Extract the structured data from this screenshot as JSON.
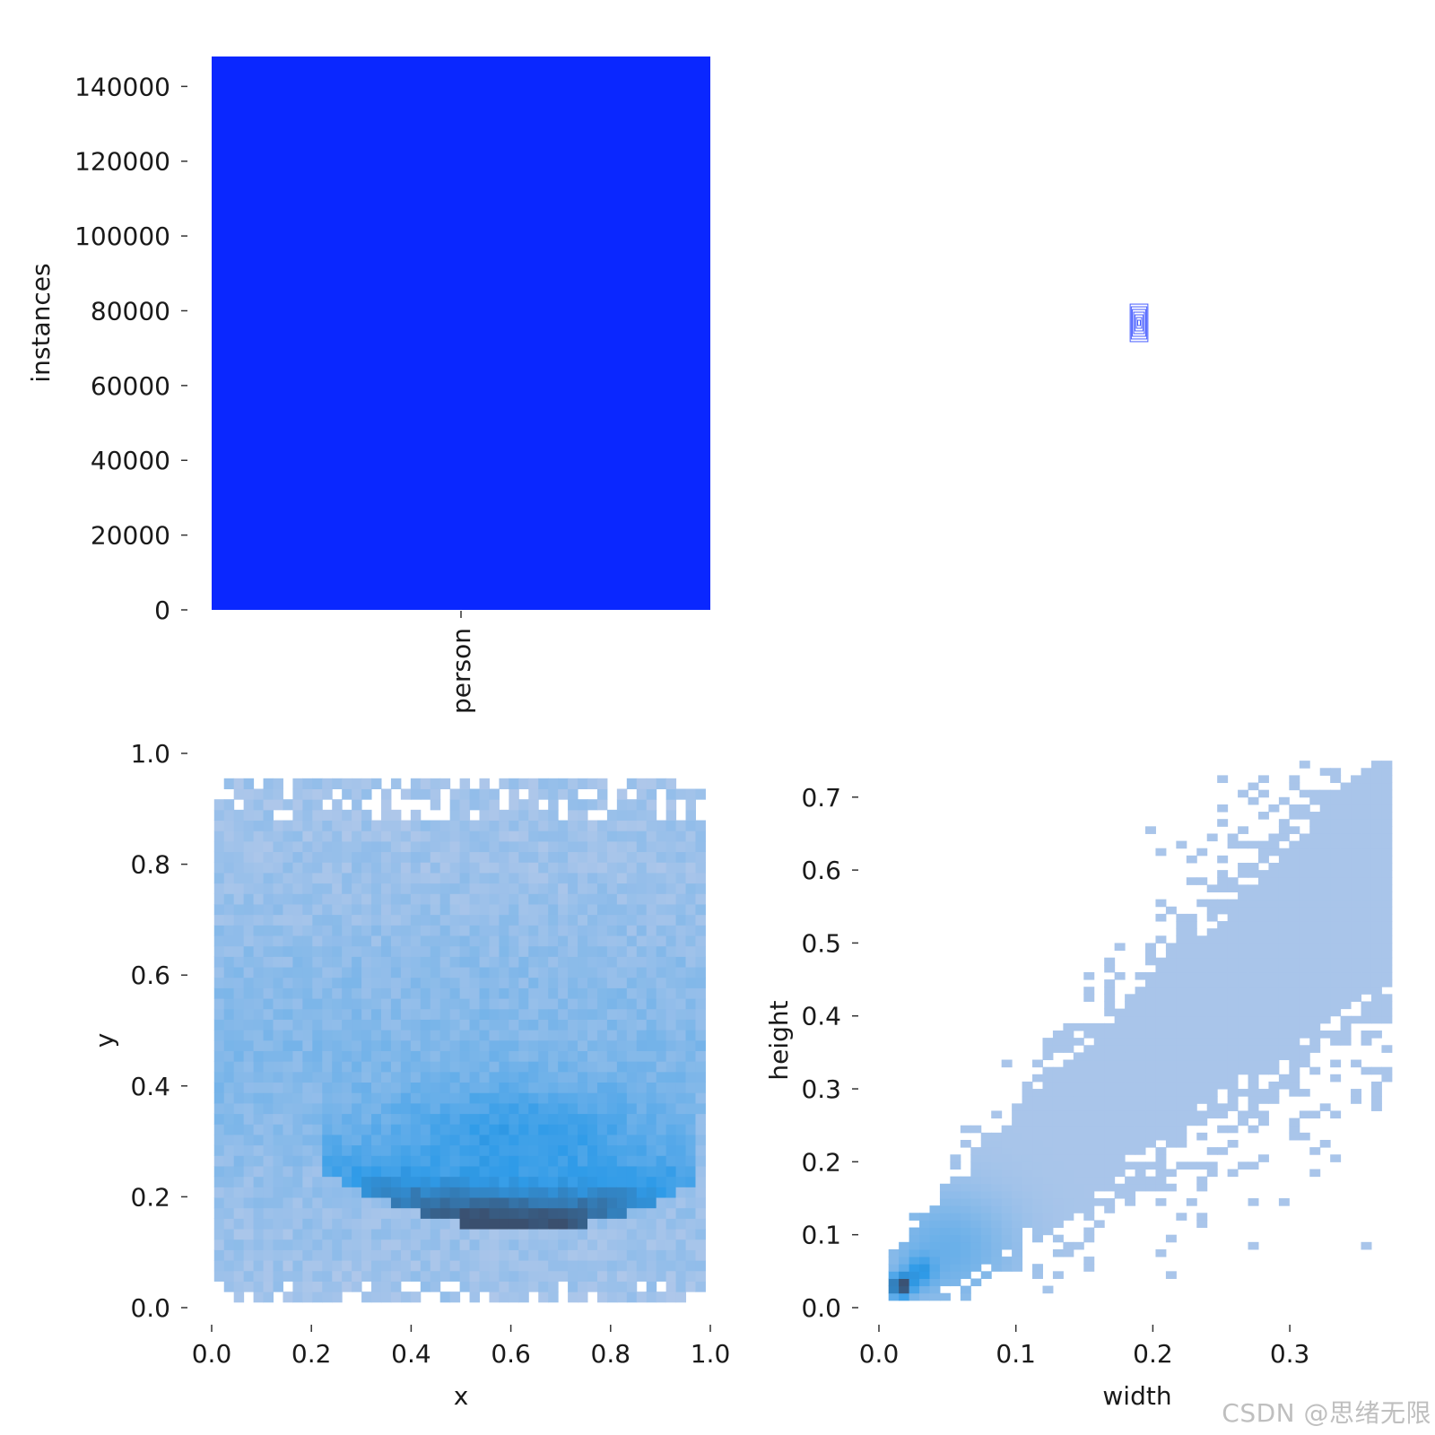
{
  "watermark": "CSDN @思绪无限",
  "colors": {
    "bar": "#0a27ff",
    "heat_light": "#aec7ea",
    "heat_mid": "#2f9be8",
    "heat_dark": "#3a4f6e",
    "box": "#0a27ff"
  },
  "chart_data": [
    {
      "type": "bar",
      "categories": [
        "person"
      ],
      "values": [
        148000
      ],
      "ylabel": "instances",
      "xlabel": "",
      "ylim": [
        0,
        148000
      ],
      "yticks": [
        "0",
        "20000",
        "40000",
        "60000",
        "80000",
        "100000",
        "120000",
        "140000"
      ],
      "ytick_values": [
        0,
        20000,
        40000,
        60000,
        80000,
        100000,
        120000,
        140000
      ]
    },
    {
      "type": "other",
      "description_visible": "",
      "box_overlay": {
        "center_x": 0.5,
        "center_y": 0.5,
        "widths": [
          0.04,
          0.035,
          0.03,
          0.024,
          0.018,
          0.012,
          0.006
        ],
        "heights": [
          0.07,
          0.06,
          0.05,
          0.04,
          0.03,
          0.02,
          0.01
        ]
      }
    },
    {
      "type": "heatmap",
      "xlabel": "x",
      "ylabel": "y",
      "xlim": [
        0,
        1
      ],
      "ylim": [
        0,
        1
      ],
      "xticks": [
        "0.0",
        "0.2",
        "0.4",
        "0.6",
        "0.8",
        "1.0"
      ],
      "xtick_values": [
        0,
        0.2,
        0.4,
        0.6,
        0.8,
        1.0
      ],
      "yticks": [
        "0.0",
        "0.2",
        "0.4",
        "0.6",
        "0.8",
        "1.0"
      ],
      "ytick_values": [
        0,
        0.2,
        0.4,
        0.6,
        0.8,
        1.0
      ],
      "data_extent": {
        "x": [
          0.005,
          0.99
        ],
        "y": [
          0.01,
          0.955
        ]
      },
      "density_center": {
        "x": 0.6,
        "y": 0.18
      }
    },
    {
      "type": "heatmap",
      "xlabel": "width",
      "ylabel": "height",
      "xlim": [
        0,
        0.37
      ],
      "ylim": [
        0,
        0.76
      ],
      "xticks": [
        "0.0",
        "0.1",
        "0.2",
        "0.3"
      ],
      "xtick_values": [
        0,
        0.1,
        0.2,
        0.3
      ],
      "yticks": [
        "0.0",
        "0.1",
        "0.2",
        "0.3",
        "0.4",
        "0.5",
        "0.6",
        "0.7"
      ],
      "ytick_values": [
        0,
        0.1,
        0.2,
        0.3,
        0.4,
        0.5,
        0.6,
        0.7
      ],
      "density_center": {
        "x": 0.02,
        "y": 0.035
      }
    }
  ]
}
